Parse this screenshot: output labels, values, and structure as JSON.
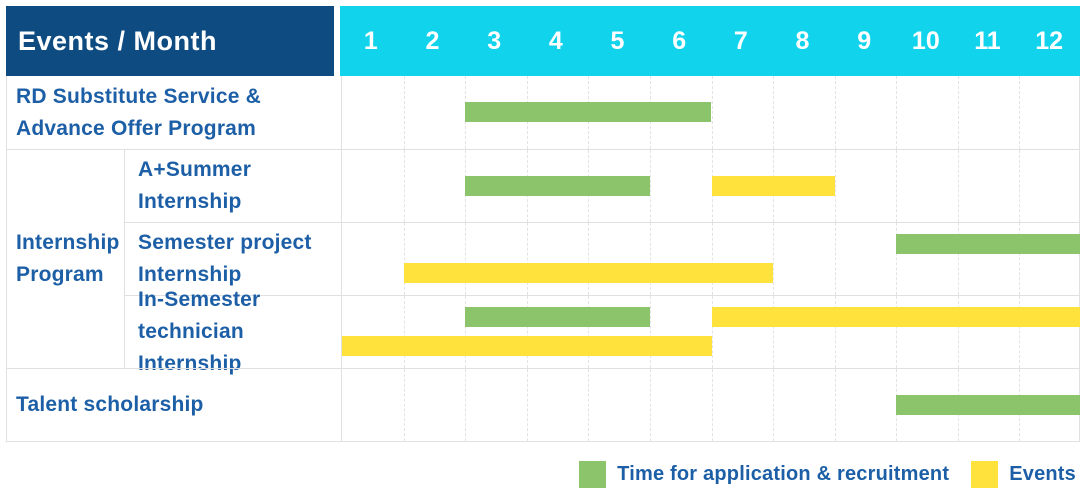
{
  "colors": {
    "header_bg": "#0d4b80",
    "months_bg": "#12d3ec",
    "label_text": "#1d5fa6",
    "application": "#8bc46a",
    "events": "#ffe23b",
    "grid": "#e0e0e0"
  },
  "header": {
    "corner_label": "Events / Month",
    "months": [
      "1",
      "2",
      "3",
      "4",
      "5",
      "6",
      "7",
      "8",
      "9",
      "10",
      "11",
      "12"
    ]
  },
  "groups": [
    {
      "label_lines": [
        "Internship",
        "Program"
      ],
      "first_row": 2,
      "last_row": 4
    }
  ],
  "legend": {
    "items": [
      {
        "kind": "application",
        "label": "Time for application & recruitment"
      },
      {
        "kind": "events",
        "label": "Events"
      }
    ]
  },
  "chart_data": {
    "type": "bar",
    "subtype": "gantt-schedule",
    "title": "Events / Month",
    "xlabel": "Month",
    "x_ticks": [
      1,
      2,
      3,
      4,
      5,
      6,
      7,
      8,
      9,
      10,
      11,
      12
    ],
    "x_range": [
      1,
      12
    ],
    "grid": "dashed-vertical",
    "legend_position": "bottom-right",
    "bar_kinds": {
      "application": {
        "label": "Time for application & recruitment",
        "color": "#8bc46a"
      },
      "events": {
        "label": "Events",
        "color": "#ffe23b"
      }
    },
    "rows": [
      {
        "group": null,
        "label_lines": [
          "RD Substitute Service &",
          "Advance Offer Program"
        ],
        "bars": [
          {
            "kind": "application",
            "start_month": 3,
            "end_month": 6,
            "lane": "center"
          }
        ]
      },
      {
        "group": "Internship Program",
        "label_lines": [
          "A+Summer",
          "Internship"
        ],
        "bars": [
          {
            "kind": "application",
            "start_month": 3,
            "end_month": 5,
            "lane": "center"
          },
          {
            "kind": "events",
            "start_month": 7,
            "end_month": 8,
            "lane": "center"
          }
        ]
      },
      {
        "group": "Internship Program",
        "label_lines": [
          "Semester project",
          "Internship"
        ],
        "bars": [
          {
            "kind": "application",
            "start_month": 10,
            "end_month": 12,
            "lane": "top"
          },
          {
            "kind": "events",
            "start_month": 2,
            "end_month": 7,
            "lane": "bottom"
          }
        ]
      },
      {
        "group": "Internship Program",
        "label_lines": [
          "In-Semester",
          "technician Internship"
        ],
        "bars": [
          {
            "kind": "application",
            "start_month": 3,
            "end_month": 5,
            "lane": "top"
          },
          {
            "kind": "events",
            "start_month": 7,
            "end_month": 12,
            "lane": "top"
          },
          {
            "kind": "events",
            "start_month": 1,
            "end_month": 6,
            "lane": "bottom"
          }
        ]
      },
      {
        "group": null,
        "label_lines": [
          "Talent scholarship"
        ],
        "bars": [
          {
            "kind": "application",
            "start_month": 10,
            "end_month": 12,
            "lane": "center"
          }
        ]
      }
    ]
  }
}
